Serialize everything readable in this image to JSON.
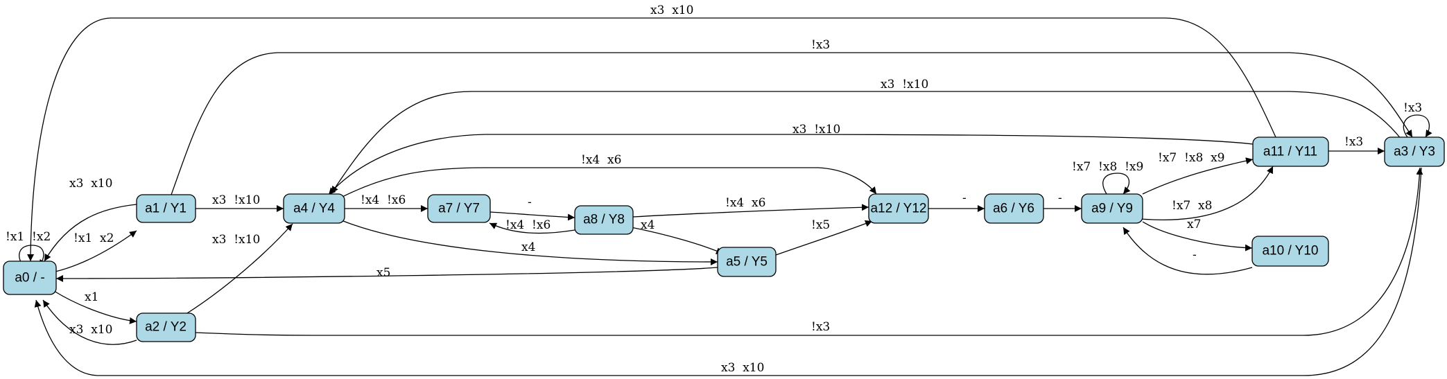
{
  "nodes": {
    "a0": {
      "label": "a0 / -"
    },
    "a1": {
      "label": "a1 / Y1"
    },
    "a2": {
      "label": "a2 / Y2"
    },
    "a3": {
      "label": "a3 / Y3"
    },
    "a4": {
      "label": "a4 / Y4"
    },
    "a5": {
      "label": "a5 / Y5"
    },
    "a6": {
      "label": "a6 / Y6"
    },
    "a7": {
      "label": "a7 / Y7"
    },
    "a8": {
      "label": "a8 / Y8"
    },
    "a9": {
      "label": "a9 / Y9"
    },
    "a10": {
      "label": "a10 / Y10"
    },
    "a11": {
      "label": "a11 / Y11"
    },
    "a12": {
      "label": "a12 / Y12"
    }
  },
  "edges": [
    {
      "id": "a0_a0",
      "from": "a0",
      "to": "a0",
      "label": "!x1  !x2"
    },
    {
      "id": "a0_a1",
      "from": "a0",
      "to": "a1",
      "label": "!x1  x2"
    },
    {
      "id": "a0_a2",
      "from": "a0",
      "to": "a2",
      "label": "x1"
    },
    {
      "id": "a1_a0",
      "from": "a1",
      "to": "a0",
      "label": "x3  x10"
    },
    {
      "id": "a1_a4",
      "from": "a1",
      "to": "a4",
      "label": "x3  !x10"
    },
    {
      "id": "a1_a3",
      "from": "a1",
      "to": "a3",
      "label": "!x3"
    },
    {
      "id": "a2_a0",
      "from": "a2",
      "to": "a0",
      "label": "x3  x10"
    },
    {
      "id": "a2_a4",
      "from": "a2",
      "to": "a4",
      "label": "x3  !x10"
    },
    {
      "id": "a2_a3",
      "from": "a2",
      "to": "a3",
      "label": "!x3"
    },
    {
      "id": "a3_a3",
      "from": "a3",
      "to": "a3",
      "label": "!x3"
    },
    {
      "id": "a3_a4",
      "from": "a3",
      "to": "a4",
      "label": "x3  !x10"
    },
    {
      "id": "a3_a0",
      "from": "a3",
      "to": "a0",
      "label": "x3  x10"
    },
    {
      "id": "a4_a7",
      "from": "a4",
      "to": "a7",
      "label": "!x4  !x6"
    },
    {
      "id": "a4_a12",
      "from": "a4",
      "to": "a12",
      "label": "!x4  x6"
    },
    {
      "id": "a4_a5",
      "from": "a4",
      "to": "a5",
      "label": "x4"
    },
    {
      "id": "a7_a8",
      "from": "a7",
      "to": "a8",
      "label": "-"
    },
    {
      "id": "a8_a7",
      "from": "a8",
      "to": "a7",
      "label": "!x4  !x6"
    },
    {
      "id": "a8_a12",
      "from": "a8",
      "to": "a12",
      "label": "!x4  x6"
    },
    {
      "id": "a8_a5",
      "from": "a8",
      "to": "a5",
      "label": "x4"
    },
    {
      "id": "a5_a12",
      "from": "a5",
      "to": "a12",
      "label": "!x5"
    },
    {
      "id": "a5_a0",
      "from": "a5",
      "to": "a0",
      "label": "x5"
    },
    {
      "id": "a12_a6",
      "from": "a12",
      "to": "a6",
      "label": "-"
    },
    {
      "id": "a6_a9",
      "from": "a6",
      "to": "a9",
      "label": "-"
    },
    {
      "id": "a9_a9",
      "from": "a9",
      "to": "a9",
      "label": "!x7  !x8  !x9"
    },
    {
      "id": "a9_a11a",
      "from": "a9",
      "to": "a11",
      "label": "!x7  !x8  x9"
    },
    {
      "id": "a9_a11b",
      "from": "a9",
      "to": "a11",
      "label": "!x7  x8"
    },
    {
      "id": "a9_a10",
      "from": "a9",
      "to": "a10",
      "label": "x7"
    },
    {
      "id": "a10_a9",
      "from": "a10",
      "to": "a9",
      "label": "-"
    },
    {
      "id": "a11_a3",
      "from": "a11",
      "to": "a3",
      "label": "!x3"
    },
    {
      "id": "a11_a4",
      "from": "a11",
      "to": "a4",
      "label": "x3  !x10"
    },
    {
      "id": "a11_a0",
      "from": "a11",
      "to": "a0",
      "label": "x3  x10"
    }
  ]
}
